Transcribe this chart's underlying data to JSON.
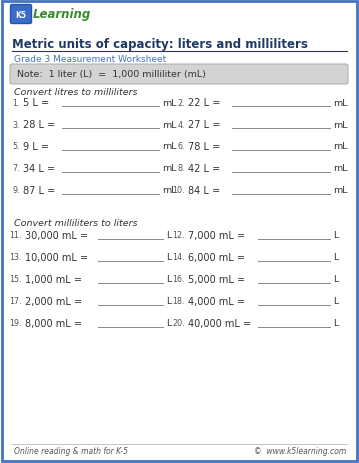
{
  "title": "Metric units of capacity: liters and milliliters",
  "subtitle": "Grade 3 Measurement Worksheet",
  "note": "Note:  1 liter (L)  =  1,000 milliliter (mL)",
  "section1_label": "Convert litres to milliliters",
  "section2_label": "Convert milliliters to liters",
  "col1_items": [
    {
      "num": "1.",
      "text": "5 L =",
      "unit": "mL"
    },
    {
      "num": "3.",
      "text": "28 L =",
      "unit": "mL"
    },
    {
      "num": "5.",
      "text": "9 L =",
      "unit": "mL"
    },
    {
      "num": "7.",
      "text": "34 L =",
      "unit": "mL"
    },
    {
      "num": "9.",
      "text": "87 L =",
      "unit": "mL"
    }
  ],
  "col2_items": [
    {
      "num": "2.",
      "text": "22 L =",
      "unit": "mL"
    },
    {
      "num": "4.",
      "text": "27 L =",
      "unit": "mL"
    },
    {
      "num": "6.",
      "text": "78 L =",
      "unit": "mL"
    },
    {
      "num": "8.",
      "text": "42 L =",
      "unit": "mL"
    },
    {
      "num": "10.",
      "text": "84 L =",
      "unit": "mL"
    }
  ],
  "col3_items": [
    {
      "num": "11.",
      "text": "30,000 mL =",
      "unit": "L"
    },
    {
      "num": "13.",
      "text": "10,000 mL =",
      "unit": "L"
    },
    {
      "num": "15.",
      "text": "1,000 mL =",
      "unit": "L"
    },
    {
      "num": "17.",
      "text": "2,000 mL =",
      "unit": "L"
    },
    {
      "num": "19.",
      "text": "8,000 mL =",
      "unit": "L"
    }
  ],
  "col4_items": [
    {
      "num": "12.",
      "text": "7,000 mL =",
      "unit": "L"
    },
    {
      "num": "14.",
      "text": "6,000 mL =",
      "unit": "L"
    },
    {
      "num": "16.",
      "text": "5,000 mL =",
      "unit": "L"
    },
    {
      "num": "18.",
      "text": "4,000 mL =",
      "unit": "L"
    },
    {
      "num": "20.",
      "text": "40,000 mL =",
      "unit": "L"
    }
  ],
  "footer_left": "Online reading & math for K-5",
  "footer_right": "©  www.k5learning.com",
  "border_color": "#4472C4",
  "title_color": "#1F3864",
  "subtitle_color": "#4472C4",
  "note_bg": "#D3D3D3",
  "note_border": "#AAAAAA",
  "section_color": "#333333",
  "text_color": "#333333",
  "num_color": "#555555",
  "line_color": "#888888",
  "bg_color": "#FFFFFF",
  "logo_blue": "#3A6BC8",
  "logo_green": "#3A8A2E",
  "footer_color": "#555555"
}
